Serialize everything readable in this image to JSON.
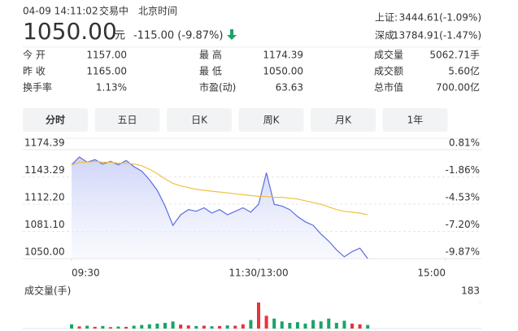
{
  "header": {
    "datetime": "04-09 14:11:02",
    "status": "交易中",
    "timezone": "北京时间",
    "price": "1050.00",
    "unit": "元",
    "change": "-115.00 (-9.87%)",
    "color": "#1aa36b"
  },
  "indices": [
    {
      "name": "上证:",
      "value": "3444.61(-1.09%)"
    },
    {
      "name": "深成:",
      "value": "13784.91(-1.47%)"
    }
  ],
  "stats": [
    [
      {
        "label": "今 开",
        "value": "1157.00",
        "color": "#1aa36b"
      },
      {
        "label": "最 高",
        "value": "1174.39",
        "color": "#e8333a"
      },
      {
        "label": "成交量",
        "value": "5062.71手",
        "color": "#333333"
      }
    ],
    [
      {
        "label": "昨 收",
        "value": "1165.00",
        "color": "#333333"
      },
      {
        "label": "最 低",
        "value": "1050.00",
        "color": "#1aa36b"
      },
      {
        "label": "成交额",
        "value": "5.60亿",
        "color": "#333333"
      }
    ],
    [
      {
        "label": "换手率",
        "value": "1.13%",
        "color": "#333333"
      },
      {
        "label": "市盈(动)",
        "value": "63.63",
        "color": "#333333"
      },
      {
        "label": "总市值",
        "value": "700.00亿",
        "color": "#333333"
      }
    ]
  ],
  "tabs": [
    "分时",
    "五日",
    "日K",
    "周K",
    "月K",
    "1年"
  ],
  "active_tab": 0,
  "chart_data": [
    {
      "type": "line",
      "x": [
        0,
        5,
        10,
        15,
        20,
        25,
        30,
        35,
        40,
        45,
        50,
        55,
        60,
        65,
        70,
        75,
        80,
        85,
        90,
        95,
        100,
        105,
        110,
        115,
        120,
        125,
        130,
        135,
        140,
        145,
        150,
        155,
        160,
        165,
        170,
        175,
        180,
        185,
        190
      ],
      "xlim": [
        0,
        240
      ],
      "xticks": [
        {
          "value": 0,
          "label": "09:30"
        },
        {
          "value": 120,
          "label": "11:30/13:00"
        },
        {
          "value": 240,
          "label": "15:00"
        }
      ],
      "ylim": [
        1050,
        1174.39
      ],
      "yticks": [
        1174.39,
        1143.29,
        {
          "value": 1112.2,
          "label": "1112.20"
        },
        {
          "value": 1081.1,
          "label": "1081.10"
        },
        {
          "value": 1050,
          "label": "1050.00"
        }
      ],
      "y2lim": [
        -9.87,
        0.81
      ],
      "y2ticks": [
        {
          "value": 0.81,
          "label": "0.81%"
        },
        {
          "value": -1.86,
          "label": "-1.86%"
        },
        {
          "value": -4.53,
          "label": "-4.53%"
        },
        {
          "value": -7.2,
          "label": "-7.20%"
        },
        {
          "value": -9.87,
          "label": "-9.87%"
        }
      ],
      "grid": true,
      "series": [
        {
          "color": "#5b6ee1",
          "fill": true,
          "values": [
            1157,
            1166,
            1160,
            1163,
            1158,
            1161,
            1157,
            1162,
            1155,
            1150,
            1140,
            1128,
            1110,
            1088,
            1100,
            1106,
            1104,
            1108,
            1102,
            1106,
            1100,
            1104,
            1108,
            1103,
            1112,
            1148,
            1112,
            1110,
            1106,
            1098,
            1092,
            1088,
            1078,
            1070,
            1060,
            1052,
            1058,
            1062,
            1050
          ]
        },
        {
          "color": "#f2c043",
          "fill": false,
          "values": [
            1157,
            1160,
            1160,
            1161,
            1160,
            1160,
            1159,
            1159,
            1158,
            1156,
            1152,
            1147,
            1141,
            1136,
            1133,
            1131,
            1129,
            1128,
            1127,
            1126,
            1125,
            1124,
            1123,
            1122,
            1121,
            1121,
            1120,
            1120,
            1119,
            1118,
            1116,
            1114,
            1112,
            1109,
            1106,
            1104,
            1103,
            1102,
            1100
          ]
        }
      ]
    },
    {
      "type": "bar",
      "title": "成交量(手)",
      "x": [
        0,
        5,
        10,
        15,
        20,
        25,
        30,
        35,
        40,
        45,
        50,
        55,
        60,
        65,
        70,
        75,
        80,
        85,
        90,
        95,
        100,
        105,
        110,
        115,
        120,
        125,
        130,
        135,
        140,
        145,
        150,
        155,
        160,
        165,
        170,
        175,
        180,
        185,
        190
      ],
      "xlim": [
        0,
        240
      ],
      "ylim": [
        0,
        183
      ],
      "yticks": [
        183
      ],
      "values": [
        30,
        15,
        20,
        12,
        18,
        10,
        14,
        12,
        20,
        25,
        30,
        35,
        40,
        50,
        28,
        22,
        18,
        20,
        16,
        18,
        22,
        20,
        30,
        60,
        183,
        90,
        70,
        50,
        40,
        45,
        35,
        60,
        50,
        70,
        40,
        55,
        35,
        30,
        25
      ],
      "colors": [
        "#1aa36b",
        "#e8333a",
        "#1aa36b",
        "#e8333a",
        "#1aa36b",
        "#e8333a",
        "#1aa36b",
        "#e8333a",
        "#1aa36b",
        "#1aa36b",
        "#1aa36b",
        "#1aa36b",
        "#1aa36b",
        "#1aa36b",
        "#e8333a",
        "#e8333a",
        "#1aa36b",
        "#e8333a",
        "#1aa36b",
        "#e8333a",
        "#1aa36b",
        "#e8333a",
        "#e8333a",
        "#1aa36b",
        "#e8333a",
        "#e8333a",
        "#1aa36b",
        "#1aa36b",
        "#1aa36b",
        "#1aa36b",
        "#1aa36b",
        "#1aa36b",
        "#1aa36b",
        "#1aa36b",
        "#1aa36b",
        "#1aa36b",
        "#e8333a",
        "#e8333a",
        "#1aa36b"
      ]
    }
  ]
}
